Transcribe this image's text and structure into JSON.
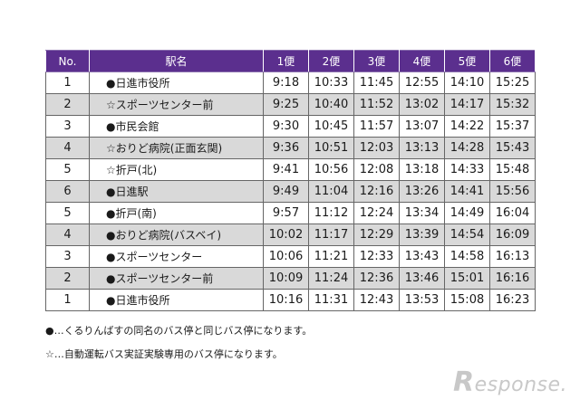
{
  "table": {
    "headers": [
      "No.",
      "駅名",
      "1便",
      "2便",
      "3便",
      "4便",
      "5便",
      "6便"
    ],
    "rows": [
      {
        "no": "1",
        "stop": "●日進市役所",
        "times": [
          "9:18",
          "10:33",
          "11:45",
          "12:55",
          "14:10",
          "15:25"
        ]
      },
      {
        "no": "2",
        "stop": "☆スポーツセンター前",
        "times": [
          "9:25",
          "10:40",
          "11:52",
          "13:02",
          "14:17",
          "15:32"
        ]
      },
      {
        "no": "3",
        "stop": "●市民会館",
        "times": [
          "9:30",
          "10:45",
          "11:57",
          "13:07",
          "14:22",
          "15:37"
        ]
      },
      {
        "no": "4",
        "stop": "☆おりど病院(正面玄関)",
        "times": [
          "9:36",
          "10:51",
          "12:03",
          "13:13",
          "14:28",
          "15:43"
        ]
      },
      {
        "no": "5",
        "stop": "☆折戸(北)",
        "times": [
          "9:41",
          "10:56",
          "12:08",
          "13:18",
          "14:33",
          "15:48"
        ]
      },
      {
        "no": "6",
        "stop": "●日進駅",
        "times": [
          "9:49",
          "11:04",
          "12:16",
          "13:26",
          "14:41",
          "15:56"
        ]
      },
      {
        "no": "5",
        "stop": "●折戸(南)",
        "times": [
          "9:57",
          "11:12",
          "12:24",
          "13:34",
          "14:49",
          "16:04"
        ]
      },
      {
        "no": "4",
        "stop": "●おりど病院(バスベイ)",
        "times": [
          "10:02",
          "11:17",
          "12:29",
          "13:39",
          "14:54",
          "16:09"
        ]
      },
      {
        "no": "3",
        "stop": "●スポーツセンター",
        "times": [
          "10:06",
          "11:21",
          "12:33",
          "13:43",
          "14:58",
          "16:13"
        ]
      },
      {
        "no": "2",
        "stop": "●スポーツセンター前",
        "times": [
          "10:09",
          "11:24",
          "12:36",
          "13:46",
          "15:01",
          "16:16"
        ]
      },
      {
        "no": "1",
        "stop": "●日進市役所",
        "times": [
          "10:16",
          "11:31",
          "12:43",
          "13:53",
          "15:08",
          "16:23"
        ]
      }
    ]
  },
  "notes": [
    "●…くるりんばすの同名のバス停と同じバス停になります。",
    "☆…自動運転バス実証実験専用のバス停になります。"
  ],
  "watermark": {
    "initial": "R",
    "rest": "esponse."
  },
  "colors": {
    "header_bg": "#5b2f8e",
    "stripe": "#d9d9d9",
    "border": "#666666"
  }
}
